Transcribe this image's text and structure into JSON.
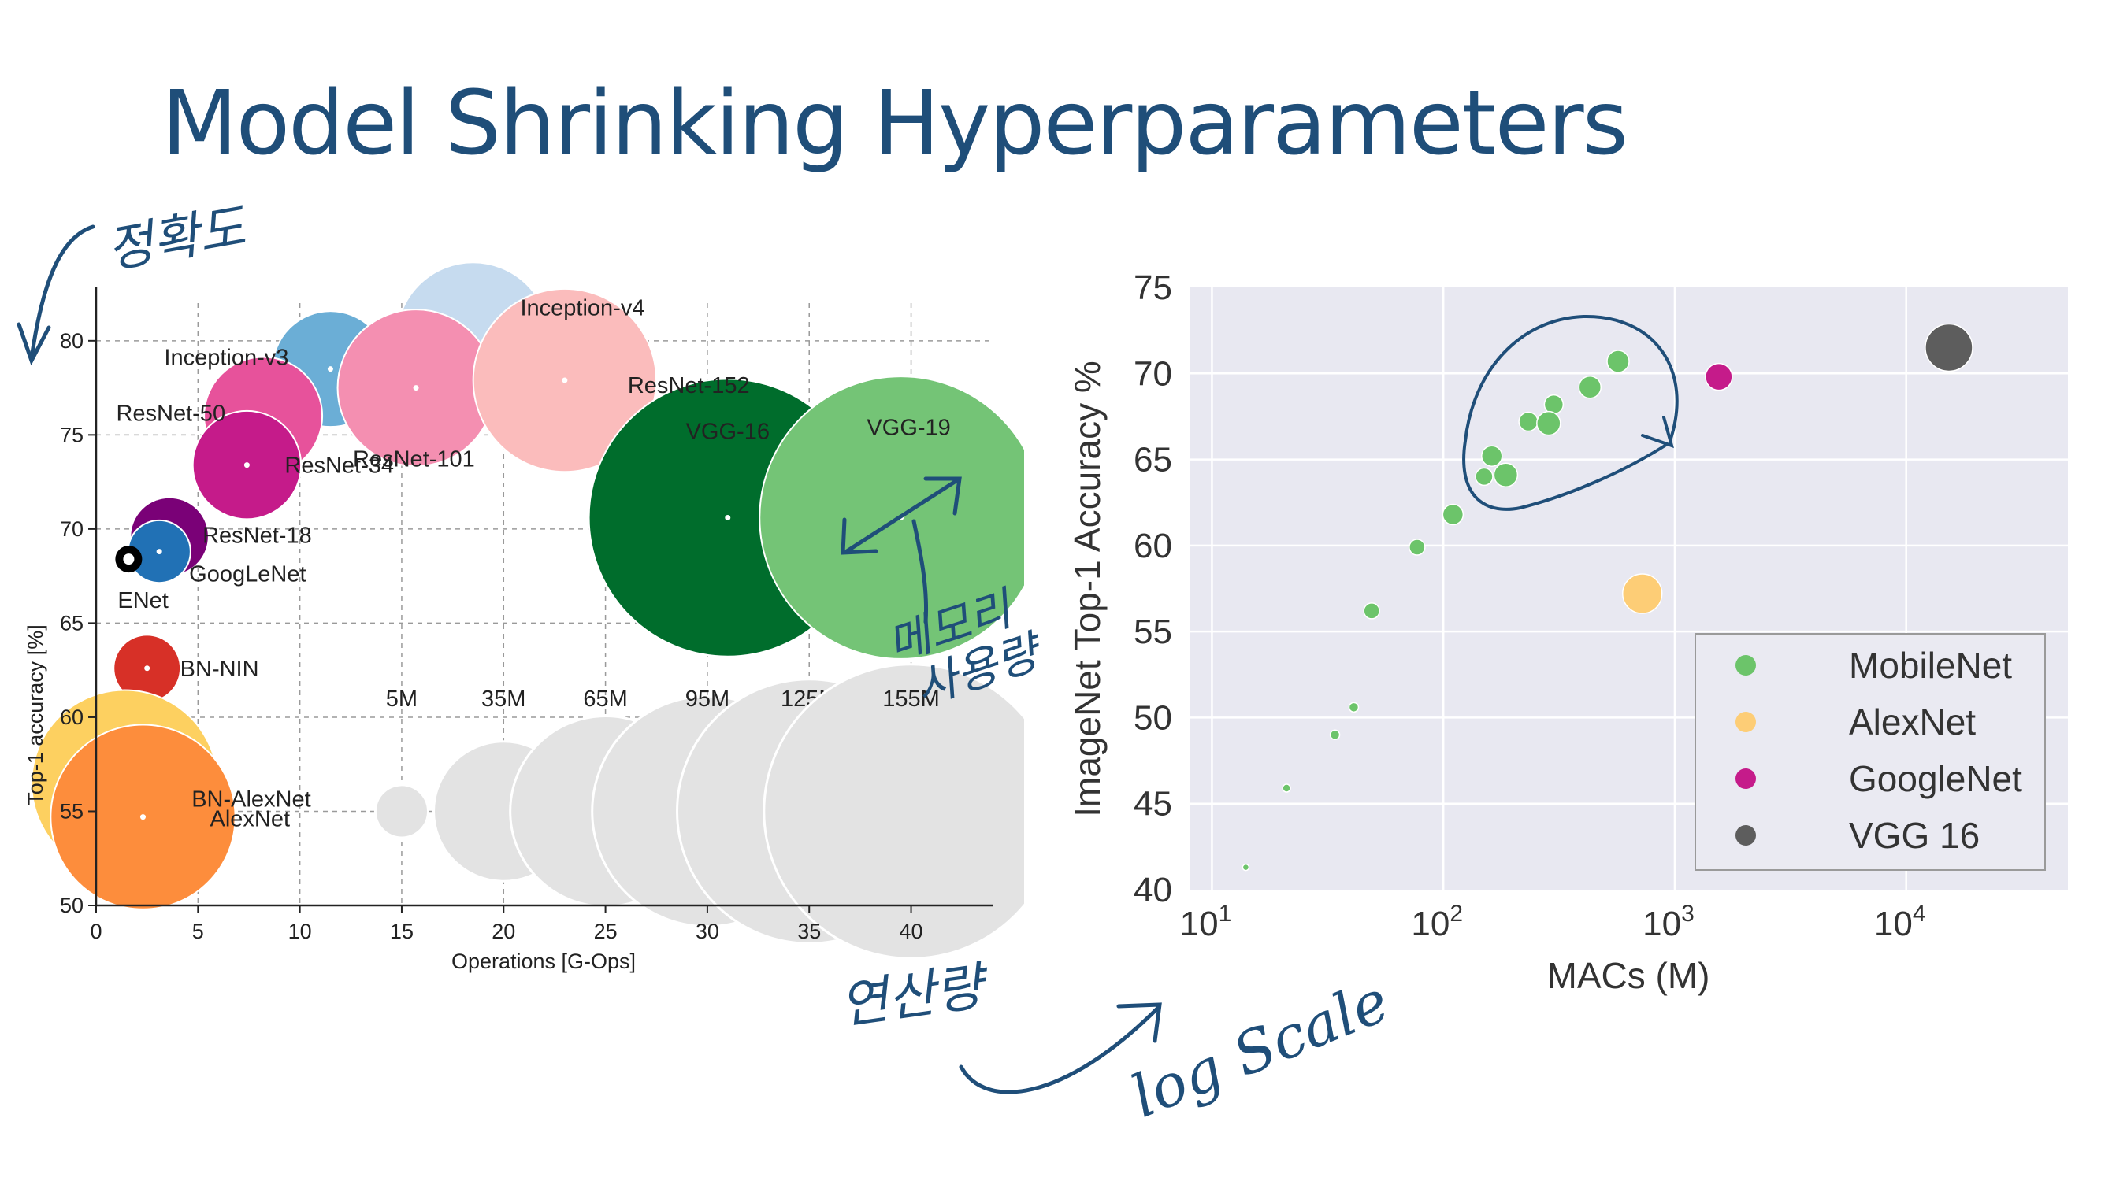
{
  "title": "Model Shrinking Hyperparameters",
  "accent_color": "#1f4e79",
  "chart_data": [
    {
      "type": "scatter",
      "subtype": "bubble",
      "xlabel": "Operations [G-Ops]",
      "ylabel": "Top-1 accuracy [%]",
      "xlim": [
        0,
        44
      ],
      "ylim": [
        50,
        82
      ],
      "xticks": [
        0,
        5,
        10,
        15,
        20,
        25,
        30,
        35,
        40
      ],
      "yticks": [
        50,
        55,
        60,
        65,
        70,
        75,
        80
      ],
      "grid": true,
      "points": [
        {
          "name": "Inception-v4",
          "x": 18.5,
          "y": 80.1,
          "size": 42,
          "color": "#c6dbef"
        },
        {
          "name": "Inception-v3",
          "x": 11.5,
          "y": 78.5,
          "size": 24,
          "color": "#6baed6"
        },
        {
          "name": "ResNet-101",
          "x": 15.7,
          "y": 77.5,
          "size": 44,
          "color": "#f48fb1"
        },
        {
          "name": "ResNet-152",
          "x": 23.0,
          "y": 77.9,
          "size": 60,
          "color": "#fbbcbc"
        },
        {
          "name": "ResNet-50",
          "x": 8.2,
          "y": 76.0,
          "size": 25,
          "color": "#e7529b"
        },
        {
          "name": "ResNet-34",
          "x": 7.4,
          "y": 73.4,
          "size": 21,
          "color": "#c51b8a"
        },
        {
          "name": "VGG-16",
          "x": 31.0,
          "y": 70.6,
          "size": 138,
          "color": "#006d2c"
        },
        {
          "name": "VGG-19",
          "x": 39.5,
          "y": 70.6,
          "size": 143,
          "color": "#74c476"
        },
        {
          "name": "ResNet-18",
          "x": 3.6,
          "y": 69.6,
          "size": 11,
          "color": "#7a0177"
        },
        {
          "name": "GoogLeNet",
          "x": 3.1,
          "y": 68.8,
          "size": 7,
          "color": "#2171b5"
        },
        {
          "name": "ENet",
          "x": 1.6,
          "y": 68.4,
          "size": 1,
          "color": "#000000"
        },
        {
          "name": "BN-NIN",
          "x": 2.5,
          "y": 62.6,
          "size": 8,
          "color": "#d73027"
        },
        {
          "name": "BN-AlexNet",
          "x": 1.4,
          "y": 56.5,
          "size": 62,
          "color": "#fdd060"
        },
        {
          "name": "AlexNet",
          "x": 2.3,
          "y": 54.7,
          "size": 61,
          "color": "#fd8d3c"
        }
      ],
      "size_legend": {
        "labels": [
          "5M",
          "35M",
          "65M",
          "95M",
          "125M",
          "155M"
        ],
        "sizes": [
          5,
          35,
          65,
          95,
          125,
          155
        ],
        "x": [
          15,
          20,
          25,
          30,
          35,
          40
        ],
        "y": 55,
        "color": "#e3e3e3"
      }
    },
    {
      "type": "scatter",
      "xlabel": "MACs (M)",
      "ylabel": "ImageNet Top-1 Accuracy %",
      "xscale": "log",
      "xlim": [
        8,
        50000
      ],
      "ylim": [
        40,
        75
      ],
      "xticks": [
        10,
        100,
        1000,
        10000
      ],
      "xtick_labels": [
        {
          "base": "10",
          "exp": "1"
        },
        {
          "base": "10",
          "exp": "2"
        },
        {
          "base": "10",
          "exp": "3"
        },
        {
          "base": "10",
          "exp": "4"
        }
      ],
      "yticks": [
        40,
        45,
        50,
        55,
        60,
        65,
        70,
        75
      ],
      "grid": true,
      "legend_position": "lower right",
      "series": [
        {
          "name": "MobileNet",
          "color": "#6cc46a",
          "points": [
            [
              14,
              41.3,
              4
            ],
            [
              21,
              45.9,
              5
            ],
            [
              34,
              49.0,
              6
            ],
            [
              41,
              50.6,
              6
            ],
            [
              49,
              56.2,
              10
            ],
            [
              77,
              59.9,
              10
            ],
            [
              110,
              61.8,
              13
            ],
            [
              150,
              64.0,
              11
            ],
            [
              162,
              65.2,
              13
            ],
            [
              186,
              64.1,
              15
            ],
            [
              233,
              67.2,
              12
            ],
            [
              300,
              68.2,
              12
            ],
            [
              285,
              67.1,
              15
            ],
            [
              430,
              69.2,
              14
            ],
            [
              569,
              70.7,
              14
            ]
          ]
        },
        {
          "name": "AlexNet",
          "color": "#fdcd76",
          "points": [
            [
              724,
              57.2,
              25
            ]
          ]
        },
        {
          "name": "GoogleNet",
          "color": "#c51b8a",
          "points": [
            [
              1550,
              69.8,
              17
            ]
          ]
        },
        {
          "name": "VGG 16",
          "color": "#5d5d5d",
          "points": [
            [
              15300,
              71.5,
              30
            ]
          ]
        }
      ]
    }
  ],
  "annotations": {
    "accuracy_note": "정확도",
    "memory_note_line1": "메모리",
    "memory_note_line2": "사용량",
    "ops_note": "연산량",
    "log_note": "log Scale"
  }
}
